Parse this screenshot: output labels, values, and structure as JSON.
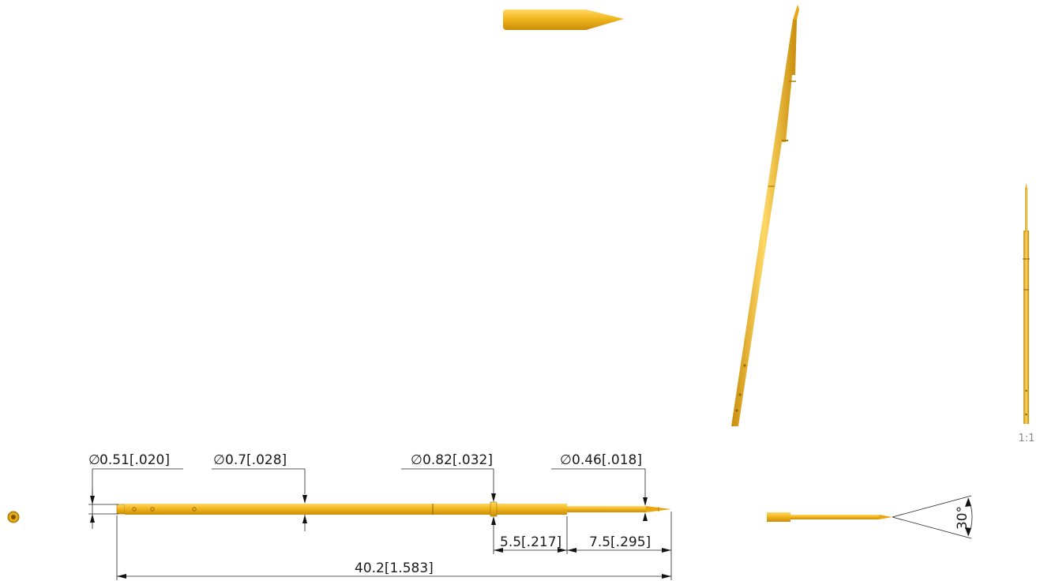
{
  "colors": {
    "part_fill": "#f2b61d",
    "part_dark": "#c98d0a",
    "part_light": "#ffd966",
    "dimension_line": "#222222"
  },
  "dimensions": {
    "dia_tail": "0.51[.020]",
    "dia_barrel": "0.7[.028]",
    "dia_ring": "0.82[.032]",
    "dia_tip": "0.46[.018]",
    "len_mid": "5.5[.217]",
    "len_tip": "7.5[.295]",
    "len_overall": "40.2[1.583]",
    "tip_angle": "30°"
  },
  "scale_label": "1:1"
}
